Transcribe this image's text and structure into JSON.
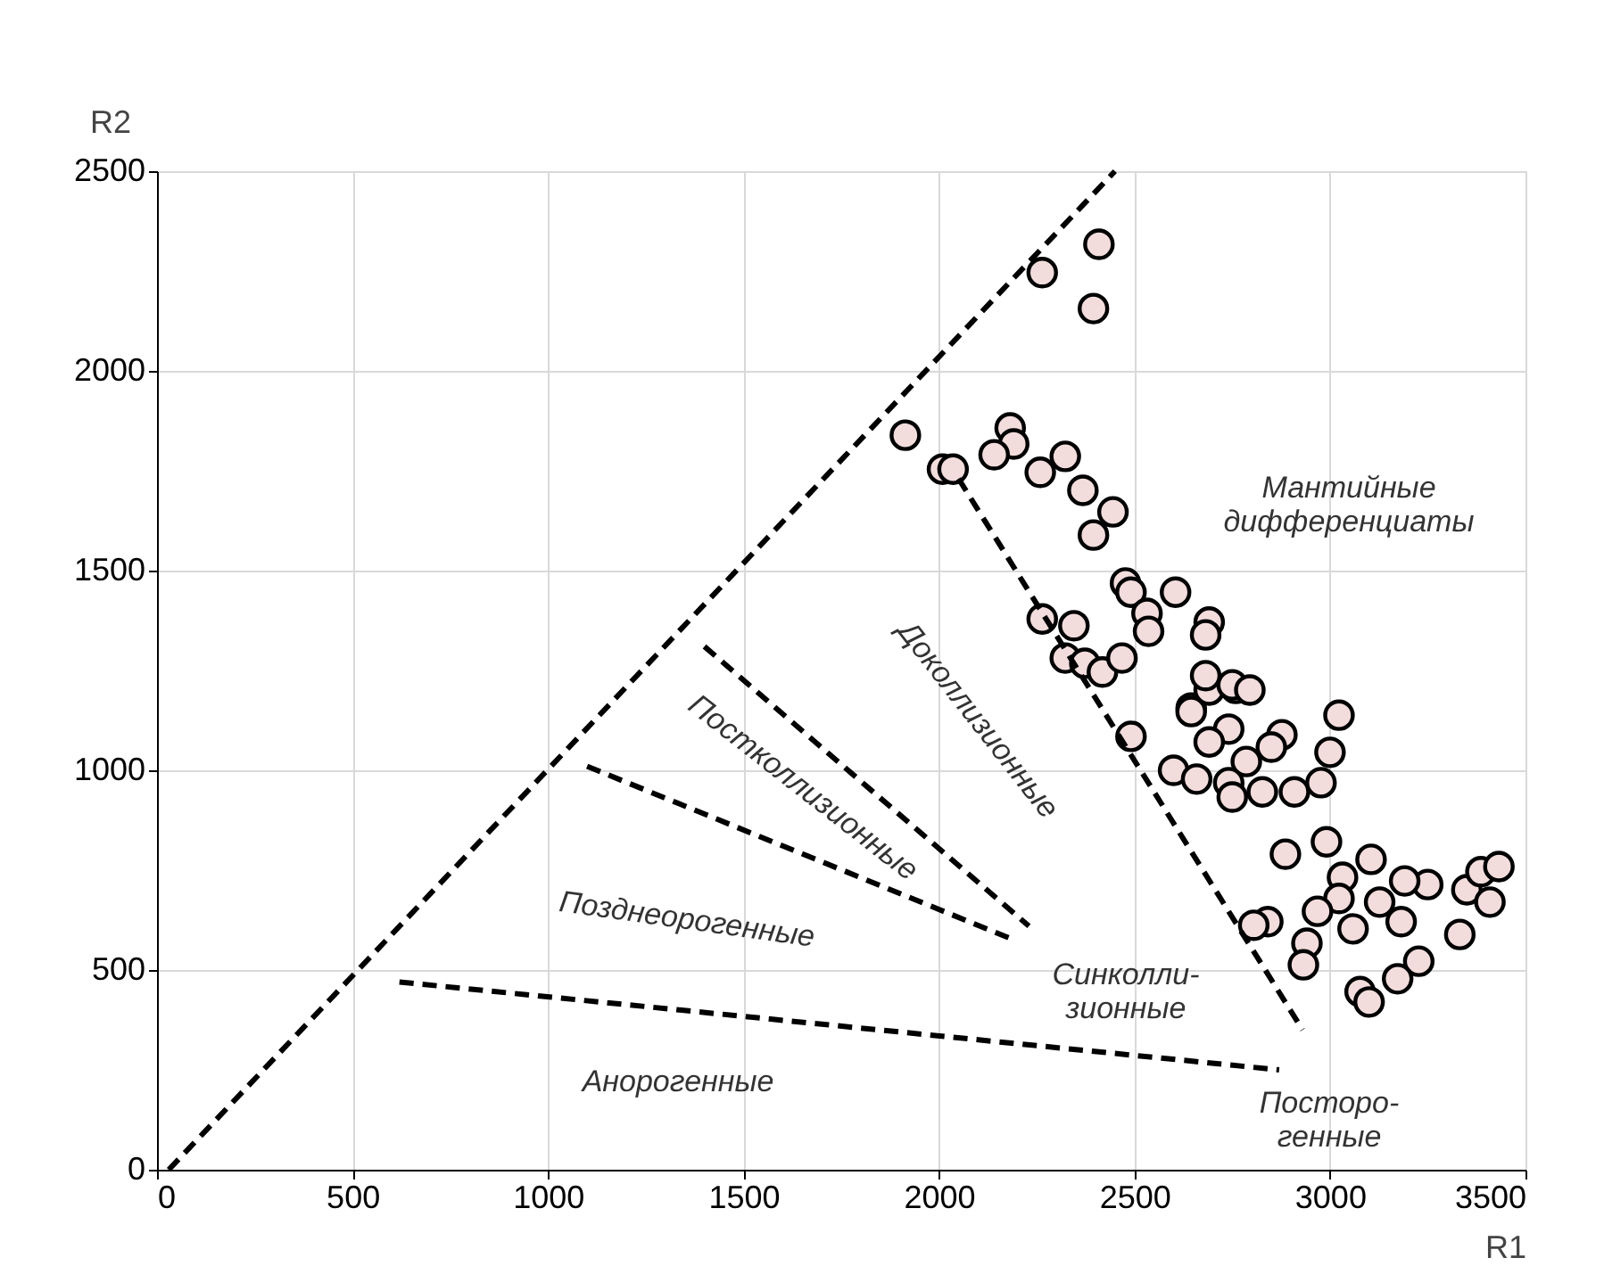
{
  "chart_data": {
    "type": "scatter",
    "xlabel": "R1",
    "ylabel": "R2",
    "xlim": [
      0,
      3500
    ],
    "ylim": [
      0,
      2500
    ],
    "xticks": [
      0,
      500,
      1000,
      1500,
      2000,
      2500,
      3000,
      3500
    ],
    "yticks": [
      0,
      500,
      1000,
      1500,
      2000,
      2500
    ],
    "grid": true,
    "series": [
      {
        "color": "#f2dcdc",
        "marker": "circle",
        "x": [
          2409,
          2264,
          2395,
          1914,
          2182,
          2191,
          2141,
          2009,
          2036,
          2259,
          2323,
          2368,
          2445,
          2395,
          2477,
          2491,
          2605,
          2532,
          2536,
          2264,
          2345,
          2323,
          2373,
          2418,
          2468,
          2691,
          2682,
          2491,
          2645,
          2691,
          2759,
          2682,
          2750,
          2795,
          2645,
          2741,
          3023,
          2877,
          2691,
          2850,
          2786,
          3000,
          2600,
          2659,
          2741,
          2827,
          2909,
          2977,
          2750,
          2886,
          2991,
          3032,
          3105,
          3250,
          3191,
          3023,
          3127,
          3182,
          3059,
          2968,
          2841,
          2805,
          2941,
          2932,
          3227,
          3173,
          3077,
          3100,
          3332,
          3350,
          3409,
          3386,
          3432
        ],
        "values": [
          2317,
          2246,
          2156,
          1839,
          1857,
          1817,
          1790,
          1754,
          1754,
          1746,
          1786,
          1701,
          1647,
          1589,
          1469,
          1446,
          1446,
          1393,
          1348,
          1379,
          1362,
          1281,
          1268,
          1246,
          1281,
          1371,
          1339,
          1085,
          1156,
          1201,
          1205,
          1237,
          1214,
          1201,
          1147,
          1103,
          1138,
          1089,
          1071,
          1058,
          1022,
          1045,
          1000,
          978,
          969,
          946,
          946,
          969,
          933,
          790,
          821,
          732,
          777,
          714,
          723,
          679,
          670,
          621,
          603,
          647,
          621,
          612,
          567,
          513,
          522,
          478,
          446,
          420,
          589,
          701,
          670,
          746,
          759
        ]
      },
      {
        "type": "line",
        "color": "#000000",
        "line_style": "dashed",
        "marker": "none",
        "x": [
          30,
          2450
        ],
        "values": [
          0,
          2500
        ]
      },
      {
        "type": "line",
        "color": "#000000",
        "line_style": "dashed",
        "marker": "none",
        "x": [
          2050,
          2930
        ],
        "values": [
          1730,
          350
        ]
      },
      {
        "type": "line",
        "color": "#000000",
        "line_style": "dashed",
        "marker": "none",
        "x": [
          1400,
          2230
        ],
        "values": [
          1310,
          610
        ]
      },
      {
        "type": "line",
        "color": "#000000",
        "line_style": "dashed",
        "marker": "none",
        "x": [
          1100,
          2180
        ],
        "values": [
          1010,
          580
        ]
      },
      {
        "type": "line",
        "color": "#000000",
        "line_style": "dashed",
        "marker": "none",
        "x": [
          620,
          2870
        ],
        "values": [
          470,
          250
        ]
      }
    ],
    "annotations": [
      "Мантийные\nдифференциаты",
      "Доколлизионные",
      "Постколлизионные",
      "Позднеорогенные",
      "Синколли-\nзионные",
      "Анорогенные",
      "Посторо-\nгенные"
    ]
  }
}
